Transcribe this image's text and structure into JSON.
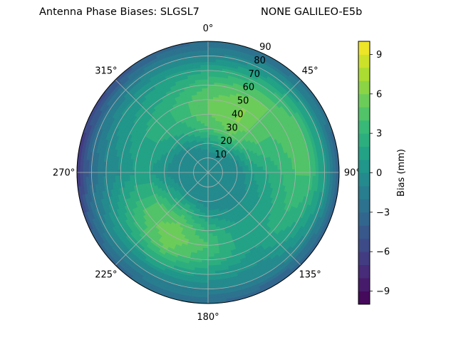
{
  "chart_data": {
    "type": "heatmap",
    "subtype": "polar-contour",
    "title_left": "Antenna Phase Biases: SLGSL7",
    "title_right": "NONE GALILEO-E5b",
    "angular_direction": "clockwise",
    "zero_location": "top",
    "angular_ticks": [
      "0°",
      "45°",
      "90°",
      "135°",
      "180°",
      "225°",
      "270°",
      "315°"
    ],
    "angular_tick_values": [
      0,
      45,
      90,
      135,
      180,
      225,
      270,
      315
    ],
    "radial_ticks": [
      "10",
      "20",
      "30",
      "40",
      "50",
      "60",
      "70",
      "80",
      "90"
    ],
    "radial_tick_values": [
      10,
      20,
      30,
      40,
      50,
      60,
      70,
      80,
      90
    ],
    "rlim": [
      0,
      90
    ],
    "grid": true,
    "colormap": "viridis",
    "colorbar": {
      "label": "Bias (mm)",
      "range": [
        -10,
        10
      ],
      "level_step": 1,
      "ticks": [
        "−9",
        "−6",
        "−3",
        "0",
        "3",
        "6",
        "9"
      ],
      "tick_values": [
        -9,
        -6,
        -3,
        0,
        3,
        6,
        9
      ],
      "placement": "right"
    },
    "azimuths": [
      0,
      30,
      60,
      90,
      120,
      150,
      180,
      210,
      240,
      270,
      300,
      330
    ],
    "zeniths": [
      0,
      10,
      20,
      30,
      40,
      50,
      60,
      70,
      80,
      90
    ],
    "values": [
      [
        0,
        -1,
        1,
        4,
        5,
        5,
        4,
        2,
        -1,
        -3
      ],
      [
        0,
        -1,
        2,
        5,
        6,
        6,
        5,
        3,
        0,
        -3
      ],
      [
        0,
        -1,
        0,
        3,
        4,
        4,
        5,
        4,
        1,
        -3
      ],
      [
        0,
        -1,
        -1,
        1,
        2,
        3,
        4,
        4,
        1,
        -4
      ],
      [
        0,
        -1,
        -1,
        0,
        1,
        2,
        3,
        2,
        0,
        -4
      ],
      [
        0,
        -1,
        -1,
        0,
        1,
        1,
        1,
        0,
        -1,
        -4
      ],
      [
        0,
        -1,
        -1,
        1,
        3,
        4,
        3,
        1,
        -1,
        -3
      ],
      [
        0,
        -1,
        0,
        3,
        5,
        6,
        5,
        2,
        -1,
        -3
      ],
      [
        0,
        -1,
        0,
        2,
        4,
        4,
        3,
        1,
        -1,
        -4
      ],
      [
        0,
        -1,
        -1,
        0,
        1,
        1,
        0,
        -1,
        -3,
        -7
      ],
      [
        0,
        -1,
        -1,
        1,
        2,
        2,
        1,
        0,
        -2,
        -6
      ],
      [
        0,
        -1,
        0,
        2,
        3,
        3,
        2,
        1,
        -1,
        -4
      ]
    ]
  }
}
